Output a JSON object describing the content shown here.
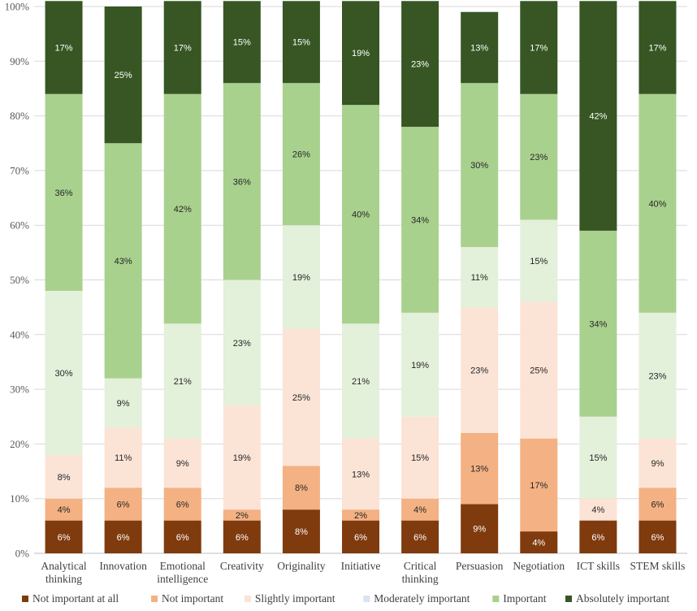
{
  "chart_data": {
    "type": "bar",
    "stacked": true,
    "percent": true,
    "title": "",
    "xlabel": "",
    "ylabel": "",
    "ylim": [
      0,
      100
    ],
    "yticks": [
      "0%",
      "10%",
      "20%",
      "30%",
      "40%",
      "50%",
      "60%",
      "70%",
      "80%",
      "90%",
      "100%"
    ],
    "categories": [
      [
        "Analytical",
        "thinking"
      ],
      [
        "Innovation"
      ],
      [
        "Emotional",
        "intelligence"
      ],
      [
        "Creativity"
      ],
      [
        "Originality"
      ],
      [
        "Initiative"
      ],
      [
        "Critical",
        "thinking"
      ],
      [
        "Persuasion"
      ],
      [
        "Negotiation"
      ],
      [
        "ICT skills"
      ],
      [
        "STEM skills"
      ]
    ],
    "series": [
      {
        "name": "Not important at all",
        "color": "#7f3b0e",
        "label_color": "#ffffff",
        "values": [
          6,
          6,
          6,
          6,
          8,
          6,
          6,
          9,
          4,
          6,
          6
        ],
        "labels": [
          "6%",
          "6%",
          "6%",
          "6%",
          "8%",
          "6%",
          "6%",
          "9%",
          "4%",
          "6%",
          "6%"
        ]
      },
      {
        "name": "Not important",
        "color": "#f4b183",
        "label_color": "#262626",
        "values": [
          4,
          6,
          6,
          2,
          8,
          2,
          4,
          13,
          17,
          0,
          6
        ],
        "labels": [
          "4%",
          "6%",
          "6%",
          "2%",
          "8%",
          "2%",
          "4%",
          "13%",
          "17%",
          "",
          "6%"
        ]
      },
      {
        "name": "Slightly important",
        "color": "#fbe3d6",
        "label_color": "#262626",
        "values": [
          8,
          11,
          9,
          19,
          25,
          13,
          15,
          23,
          25,
          4,
          9
        ],
        "labels": [
          "8%",
          "11%",
          "9%",
          "19%",
          "25%",
          "13%",
          "15%",
          "23%",
          "25%",
          "4%",
          "9%"
        ]
      },
      {
        "name": "Moderately important",
        "color": "#e3f0da",
        "label_color": "#262626",
        "values": [
          30,
          9,
          21,
          23,
          19,
          21,
          19,
          11,
          15,
          15,
          23
        ],
        "labels": [
          "30%",
          "9%",
          "21%",
          "23%",
          "19%",
          "21%",
          "19%",
          "11%",
          "15%",
          "15%",
          "23%"
        ]
      },
      {
        "name": "Important",
        "color": "#a9d18e",
        "label_color": "#262626",
        "values": [
          36,
          43,
          42,
          36,
          26,
          40,
          34,
          30,
          23,
          34,
          40
        ],
        "labels": [
          "36%",
          "43%",
          "42%",
          "36%",
          "26%",
          "40%",
          "34%",
          "30%",
          "23%",
          "34%",
          "40%"
        ]
      },
      {
        "name": "Absolutely important",
        "color": "#375623",
        "label_color": "#ffffff",
        "values": [
          17,
          25,
          17,
          15,
          15,
          19,
          23,
          13,
          17,
          42,
          17
        ],
        "labels": [
          "17%",
          "25%",
          "17%",
          "15%",
          "15%",
          "19%",
          "23%",
          "13%",
          "17%",
          "42%",
          "17%"
        ]
      }
    ],
    "legend": {
      "position": "bottom",
      "entries": [
        "Not important at all",
        "Not important",
        "Slightly important",
        "Moderately important",
        "Important",
        "Absolutely important"
      ],
      "swatch_colors": [
        "#7f3b0e",
        "#f4b183",
        "#fbe3d6",
        "#dae3f3",
        "#a9d18e",
        "#375623"
      ]
    },
    "grid": true
  }
}
